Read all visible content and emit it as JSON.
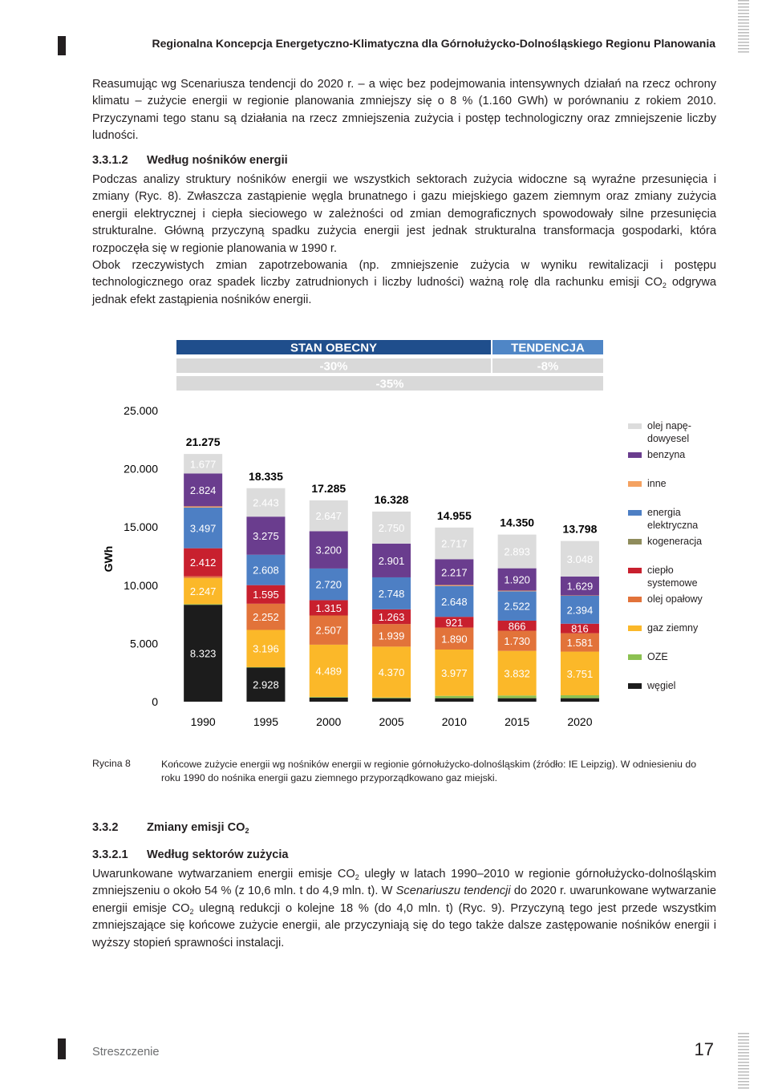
{
  "header": {
    "title": "Regionalna Koncepcja Energetyczno-Klimatyczna dla Górnołużycko-Dolnośląskiego Regionu Planowania"
  },
  "paragraphs": [
    [
      {
        "text": "Reasumując wg Scenariusza tendencji do 2020 r. – a więc bez podejmowania intensywnych działań na rzecz ochrony klimatu – zużycie energii w regionie planowania zmniejszy się o 8 % (1.160 GWh) w porównaniu z rokiem 2010. Przyczynami tego stanu są działania na rzecz zmniejszenia zużycia i postęp technologiczny oraz zmniejszenie liczby ludności."
      }
    ],
    [
      {
        "text": "Podczas analizy struktury nośników energii we wszystkich sektorach zużycia widoczne są wyraźne przesunięcia i zmiany (Ryc. 8). Zwłaszcza zastąpienie węgla brunatnego i gazu miejskiego gazem ziemnym oraz zmiany zużycia energii elektrycznej i ciepła sieciowego w zależności od zmian demograficznych spowodowały silne przesunięcia strukturalne. Główną przyczyną spadku zużycia energii jest jednak strukturalna transformacja gospodarki, która rozpoczęła się w regionie planowania w 1990 r."
      }
    ],
    [
      {
        "text": "Obok rzeczywistych zmian zapotrzebowania (np. zmniejszenie zużycia w wyniku rewitalizacji i postępu technologicznego oraz spadek liczby zatrudnionych i liczby ludności) ważną rolę dla rachunku emisji CO"
      },
      {
        "sub": "2"
      },
      {
        "text": " odgrywa jednak efekt zastąpienia nośników energii."
      }
    ],
    [
      {
        "text": "Uwarunkowane wytwarzaniem energii emisje CO"
      },
      {
        "sub": "2"
      },
      {
        "text": " uległy w latach 1990–2010 w regionie górnołużycko-dolnośląskim zmniejszeniu o około 54 % (z 10,6 mln. t do 4,9 mln. t). W "
      },
      {
        "em": "Scenariuszu tendencji"
      },
      {
        "text": " do 2020 r. uwarunkowane wytwarzanie energii emisje CO"
      },
      {
        "sub": "2"
      },
      {
        "text": " ulegną redukcji o kolejne 18 % (do 4,0 mln. t) (Ryc. 9). Przyczyną tego jest przede wszystkim zmniejszające się końcowe zużycie energii, ale przyczyniają się do tego także dalsze zastępowanie nośników energii i wyższy stopień sprawności instalacji."
      }
    ]
  ],
  "headings": [
    {
      "number": "3.3.1.2",
      "title": [
        {
          "text": "Według nośników energii"
        }
      ]
    },
    {
      "number": "3.3.2",
      "title": [
        {
          "text": "Zmiany emisji CO"
        },
        {
          "sub": "2"
        }
      ]
    },
    {
      "number": "3.3.2.1",
      "title": [
        {
          "text": "Według sektorów zużycia"
        }
      ]
    }
  ],
  "caption": {
    "label": "Rycina 8",
    "text": "Końcowe zużycie energii wg nośników energii w regionie górnołużycko-dolnośląskim (źródło: IE Leipzig). W odniesieniu do roku 1990 do nośnika energii gazu ziemnego przyporządkowano gaz miejski."
  },
  "footer": {
    "section": "Streszczenie",
    "page": "17"
  },
  "chart_data": {
    "type": "stacked_bar",
    "ylabel": "GWh",
    "annotations": [
      "STAN OBECNY",
      "TENDENCJA",
      "-30%",
      "-8%",
      "-35%"
    ],
    "categories": [
      "1990",
      "1995",
      "2000",
      "2005",
      "2010",
      "2015",
      "2020"
    ],
    "totals": [
      21275,
      18335,
      17285,
      16328,
      14955,
      14350,
      13798
    ],
    "total_labels": [
      "21.275",
      "18.335",
      "17.285",
      "16.328",
      "14.955",
      "14.350",
      "13.798"
    ],
    "ylim": [
      0,
      25000
    ],
    "yticks": [
      0,
      {
        "value": 5000,
        "label": "5.000"
      },
      {
        "value": 10000,
        "label": "10.000"
      },
      {
        "value": 15000,
        "label": "15.000"
      },
      {
        "value": 20000,
        "label": "20.000"
      },
      {
        "value": 25000,
        "label": "25.000"
      }
    ],
    "series": [
      {
        "name": "węgiel",
        "color": "#1c1c1c",
        "values": [
          8323,
          2928,
          350,
          300,
          300,
          300,
          300
        ],
        "value_labels": [
          "8.323",
          "2.928",
          null,
          null,
          null,
          null,
          null
        ]
      },
      {
        "name": "OZE",
        "color": "#8cc152",
        "values": [
          50,
          38,
          57,
          57,
          200,
          230,
          250
        ],
        "value_labels": [
          null,
          null,
          null,
          null,
          null,
          null,
          null
        ]
      },
      {
        "name": "gaz ziemny",
        "color": "#fbb829",
        "values": [
          2247,
          3196,
          4489,
          4370,
          3977,
          3832,
          3751
        ],
        "value_labels": [
          "2.247",
          "3.196",
          "4.489",
          "4.370",
          "3.977",
          "3.832",
          "3.751"
        ]
      },
      {
        "name": "olej opałowy",
        "color": "#e2733a",
        "values": [
          145,
          2252,
          2507,
          1939,
          1890,
          1730,
          1581
        ],
        "value_labels": [
          null,
          "2.252",
          "2.507",
          "1.939",
          "1.890",
          "1.730",
          "1.581"
        ]
      },
      {
        "name": "ciepło systemowe",
        "color": "#c8202e",
        "values": [
          2412,
          1595,
          1315,
          1263,
          921,
          866,
          816
        ],
        "value_labels": [
          "2.412",
          "1.595",
          "1.315",
          "1.263",
          "921",
          "866",
          "816"
        ]
      },
      {
        "name": "kogeneracja",
        "color": "#8f8c5c",
        "values": [
          null,
          null,
          null,
          null,
          null,
          null,
          null
        ],
        "value_labels": [
          null,
          null,
          null,
          null,
          null,
          null,
          null
        ]
      },
      {
        "name": "energia elektryczna",
        "color": "#4d7fc4",
        "values": [
          3497,
          2608,
          2720,
          2748,
          2648,
          2522,
          2394
        ],
        "value_labels": [
          "3.497",
          "2.608",
          "2.720",
          "2.748",
          "2.648",
          "2.522",
          "2.394"
        ]
      },
      {
        "name": "inne",
        "color": "#f4a261",
        "values": [
          100,
          null,
          null,
          null,
          85,
          57,
          29
        ],
        "value_labels": [
          null,
          null,
          null,
          null,
          null,
          null,
          null
        ]
      },
      {
        "name": "benzyna",
        "color": "#6a3d8e",
        "values": [
          2824,
          3275,
          3200,
          2901,
          2217,
          1920,
          1629
        ],
        "value_labels": [
          "2.824",
          "3.275",
          "3.200",
          "2.901",
          "2.217",
          "1.920",
          "1.629"
        ]
      },
      {
        "name": "olej napę-dowyesel",
        "color": "#dcdcdc",
        "values": [
          1677,
          2443,
          2647,
          2750,
          2717,
          2893,
          3048
        ],
        "value_labels": [
          "1.677",
          "2.443",
          "2.647",
          "2.750",
          "2.717",
          "2.893",
          "3.048"
        ]
      }
    ]
  }
}
